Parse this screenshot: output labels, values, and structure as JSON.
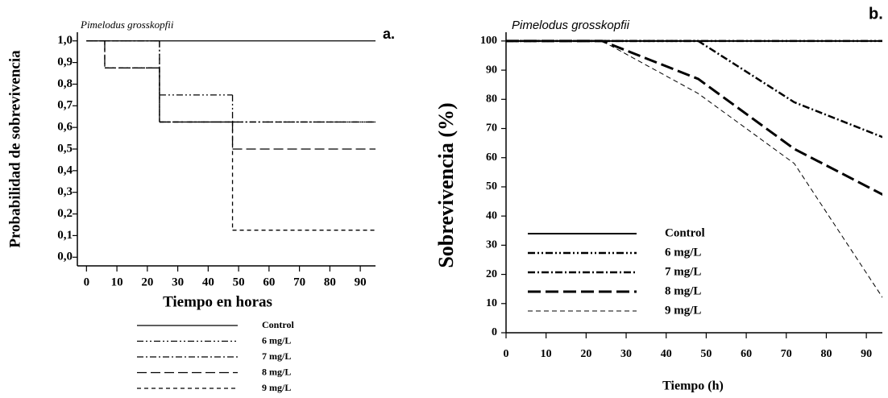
{
  "chart_data": [
    {
      "type": "step",
      "title": "Pimelodus grosskopfii",
      "panel_label": "a.",
      "x_label": "Tiempo en horas",
      "y_label": "Probabilidad de sobrevivencia",
      "xlim": [
        -3,
        95
      ],
      "ylim": [
        -0.04,
        1.04
      ],
      "xticks": [
        0,
        10,
        20,
        30,
        40,
        50,
        60,
        70,
        80,
        90
      ],
      "yticks": [
        {
          "value": 0,
          "label": "0,0"
        },
        {
          "value": 0.1,
          "label": "0,1"
        },
        {
          "value": 0.2,
          "label": "0,2"
        },
        {
          "value": 0.3,
          "label": "0,3"
        },
        {
          "value": 0.4,
          "label": "0,4"
        },
        {
          "value": 0.5,
          "label": "0,5"
        },
        {
          "value": 0.6,
          "label": "0,6"
        },
        {
          "value": 0.7,
          "label": "0,7"
        },
        {
          "value": 0.8,
          "label": "0,8"
        },
        {
          "value": 0.9,
          "label": "0,9"
        },
        {
          "value": 1,
          "label": "1,0"
        }
      ],
      "series": [
        {
          "name": "Control",
          "color": "#000000",
          "dash": "",
          "x": [
            0
          ],
          "values": [
            1
          ]
        },
        {
          "name": "6 mg/L",
          "color": "#000000",
          "dash": "8 3 2 3 2 3",
          "x": [
            0,
            24,
            48
          ],
          "values": [
            1,
            0.75,
            0.625
          ]
        },
        {
          "name": "7 mg/L",
          "color": "#000000",
          "dash": "8 3 2 3",
          "x": [
            0,
            24
          ],
          "values": [
            1,
            0.625
          ]
        },
        {
          "name": "8 mg/L",
          "color": "#000000",
          "dash": "12 5",
          "x": [
            0,
            6,
            24,
            48
          ],
          "values": [
            1,
            0.875,
            0.625,
            0.5
          ]
        },
        {
          "name": "9 mg/L",
          "color": "#000000",
          "dash": "5 4",
          "x": [
            0,
            6,
            24,
            48
          ],
          "values": [
            1,
            0.875,
            0.625,
            0.125
          ]
        }
      ]
    },
    {
      "type": "line",
      "title": "Pimelodus grosskopfii",
      "panel_label": "b.",
      "x_label": "Tiempo (h)",
      "y_label": "Sobrevivencia (%)",
      "xlim": [
        0,
        94
      ],
      "ylim": [
        0,
        103
      ],
      "xticks": [
        0,
        10,
        20,
        30,
        40,
        50,
        60,
        70,
        80,
        90
      ],
      "yticks": [
        0,
        10,
        20,
        30,
        40,
        50,
        60,
        70,
        80,
        90,
        100
      ],
      "x": [
        0,
        24,
        48,
        72,
        96
      ],
      "series": [
        {
          "name": "Control",
          "color": "#000000",
          "dash": "",
          "width": 2,
          "values": [
            100,
            100,
            100,
            100,
            100
          ]
        },
        {
          "name": "6 mg/L",
          "color": "#000000",
          "dash": "9 3 2 3 2 3",
          "width": 2.5,
          "values": [
            100,
            100,
            100,
            100,
            100
          ]
        },
        {
          "name": "7 mg/L",
          "color": "#000000",
          "dash": "9 3 2 3",
          "width": 2.5,
          "values": [
            100,
            100,
            100,
            79,
            66
          ]
        },
        {
          "name": "8 mg/L",
          "color": "#000000",
          "dash": "16 6",
          "width": 3,
          "values": [
            100,
            100,
            87,
            63,
            46
          ]
        },
        {
          "name": "9 mg/L",
          "color": "#000000",
          "dash": "6 4",
          "width": 1,
          "values": [
            100,
            100,
            82,
            58,
            8
          ]
        }
      ]
    }
  ]
}
